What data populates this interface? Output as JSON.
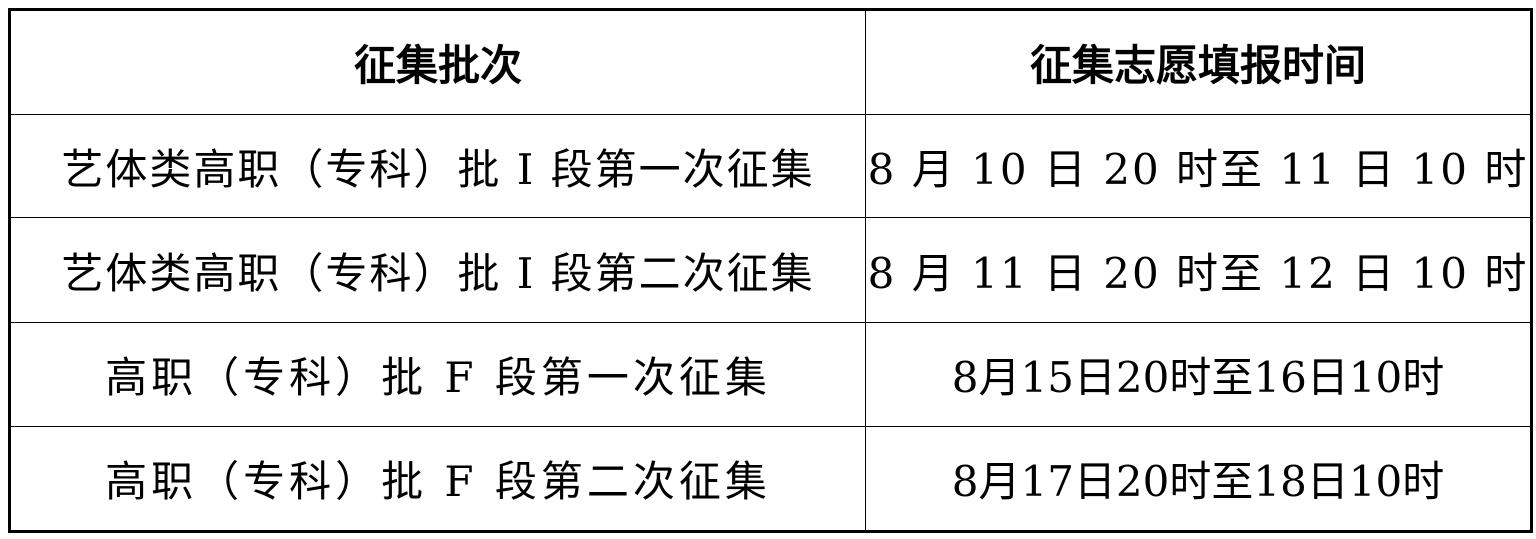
{
  "table": {
    "headers": [
      "征集批次",
      "征集志愿填报时间"
    ],
    "rows": [
      [
        "艺体类高职（专科）批 I 段第一次征集",
        "8 月 10 日 20 时至 11 日 10 时"
      ],
      [
        "艺体类高职（专科）批 I 段第二次征集",
        "8 月 11 日 20 时至 12 日 10 时"
      ],
      [
        "高职（专科）批 F 段第一次征集",
        "8月15日20时至16日10时"
      ],
      [
        "高职（专科）批 F 段第二次征集",
        "8月17日20时至18日10时"
      ]
    ]
  }
}
